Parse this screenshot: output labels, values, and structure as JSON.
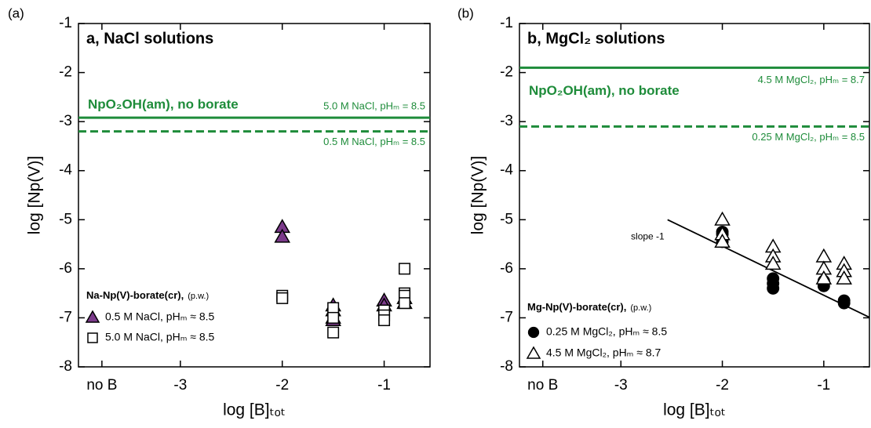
{
  "chart_data": [
    {
      "type": "scatter",
      "panel_tag": "(a)",
      "title": "a, NaCl solutions",
      "x_label": "log [B]ₜₒₜ",
      "y_label": "log [Np(V)]",
      "xlim": [
        -4,
        -0.55
      ],
      "ylim": [
        -8,
        -1
      ],
      "xticks": [
        {
          "value": -3.77,
          "label": "no B"
        },
        -3,
        -2,
        -1
      ],
      "yticks": [
        -8,
        -7,
        -6,
        -5,
        -4,
        -3,
        -2,
        -1
      ],
      "annotation": "NpO₂OH(am), no borate",
      "annotation_color": "#1e8c3a",
      "hlines": [
        {
          "value": -2.92,
          "label": "5.0 M NaCl, pHₘ = 8.5",
          "style": "solid",
          "color": "#1e8c3a"
        },
        {
          "value": -3.2,
          "label": "0.5 M NaCl, pHₘ = 8.5",
          "style": "dashed",
          "color": "#1e8c3a"
        }
      ],
      "legend_title": "Na-Np(V)-borate(cr),",
      "legend_note": "(p.w.)",
      "series": [
        {
          "name": "0.5 M NaCl, pHₘ ≈ 8.5",
          "marker": "triangle",
          "color": "#7b3a8a",
          "x": [
            -2,
            -2,
            -1.5,
            -1.5,
            -1.5,
            -1.5,
            -1,
            -1,
            -0.8,
            -0.8
          ],
          "values": [
            -5.15,
            -5.35,
            -6.75,
            -6.85,
            -7.0,
            -7.05,
            -6.65,
            -6.75,
            -6.6,
            -6.7
          ]
        },
        {
          "name": "5.0 M NaCl, pHₘ ≈ 8.5",
          "marker": "square",
          "color": "#ffffff",
          "x": [
            -2,
            -2,
            -1.5,
            -1.5,
            -1.5,
            -1,
            -1,
            -1,
            -0.8,
            -0.8,
            -0.8,
            -0.8
          ],
          "values": [
            -6.55,
            -6.6,
            -6.8,
            -7.0,
            -7.3,
            -6.85,
            -6.95,
            -7.05,
            -6.0,
            -6.5,
            -6.55,
            -6.7
          ]
        }
      ]
    },
    {
      "type": "scatter",
      "panel_tag": "(b)",
      "title": "b, MgCl₂ solutions",
      "x_label": "log [B]ₜₒₜ",
      "y_label": "log [Np(V)]",
      "xlim": [
        -4,
        -0.55
      ],
      "ylim": [
        -8,
        -1
      ],
      "xticks": [
        {
          "value": -3.77,
          "label": "no B"
        },
        -3,
        -2,
        -1
      ],
      "yticks": [
        -8,
        -7,
        -6,
        -5,
        -4,
        -3,
        -2,
        -1
      ],
      "annotation": "NpO₂OH(am), no borate",
      "annotation_color": "#1e8c3a",
      "hlines": [
        {
          "value": -1.9,
          "label": "4.5 M MgCl₂, pHₘ = 8.7",
          "style": "solid",
          "color": "#1e8c3a"
        },
        {
          "value": -3.1,
          "label": "0.25 M MgCl₂, pHₘ = 8.5",
          "style": "dashed",
          "color": "#1e8c3a"
        }
      ],
      "fit_line": {
        "label": "slope -1",
        "x": [
          -2.54,
          -0.55
        ],
        "values": [
          -5.0,
          -6.99
        ]
      },
      "legend_title": "Mg-Np(V)-borate(cr),",
      "legend_note": "(p.w.)",
      "series": [
        {
          "name": "0.25 M MgCl₂, pHₘ ≈ 8.5",
          "marker": "circle",
          "color": "#000000",
          "x": [
            -2,
            -2,
            -2,
            -1.5,
            -1.5,
            -1.5,
            -1,
            -1,
            -0.8,
            -0.8
          ],
          "values": [
            -5.25,
            -5.3,
            -5.45,
            -6.2,
            -6.3,
            -6.4,
            -6.25,
            -6.35,
            -6.65,
            -6.7
          ]
        },
        {
          "name": "4.5 M MgCl₂, pHₘ ≈ 8.7",
          "marker": "triangle",
          "color": "#ffffff",
          "x": [
            -2,
            -2,
            -2,
            -1.5,
            -1.5,
            -1.5,
            -1,
            -1,
            -1,
            -0.8,
            -0.8,
            -0.8
          ],
          "values": [
            -5.0,
            -5.3,
            -5.45,
            -5.55,
            -5.75,
            -5.9,
            -5.75,
            -6.0,
            -6.2,
            -5.9,
            -6.05,
            -6.2
          ]
        }
      ]
    }
  ]
}
